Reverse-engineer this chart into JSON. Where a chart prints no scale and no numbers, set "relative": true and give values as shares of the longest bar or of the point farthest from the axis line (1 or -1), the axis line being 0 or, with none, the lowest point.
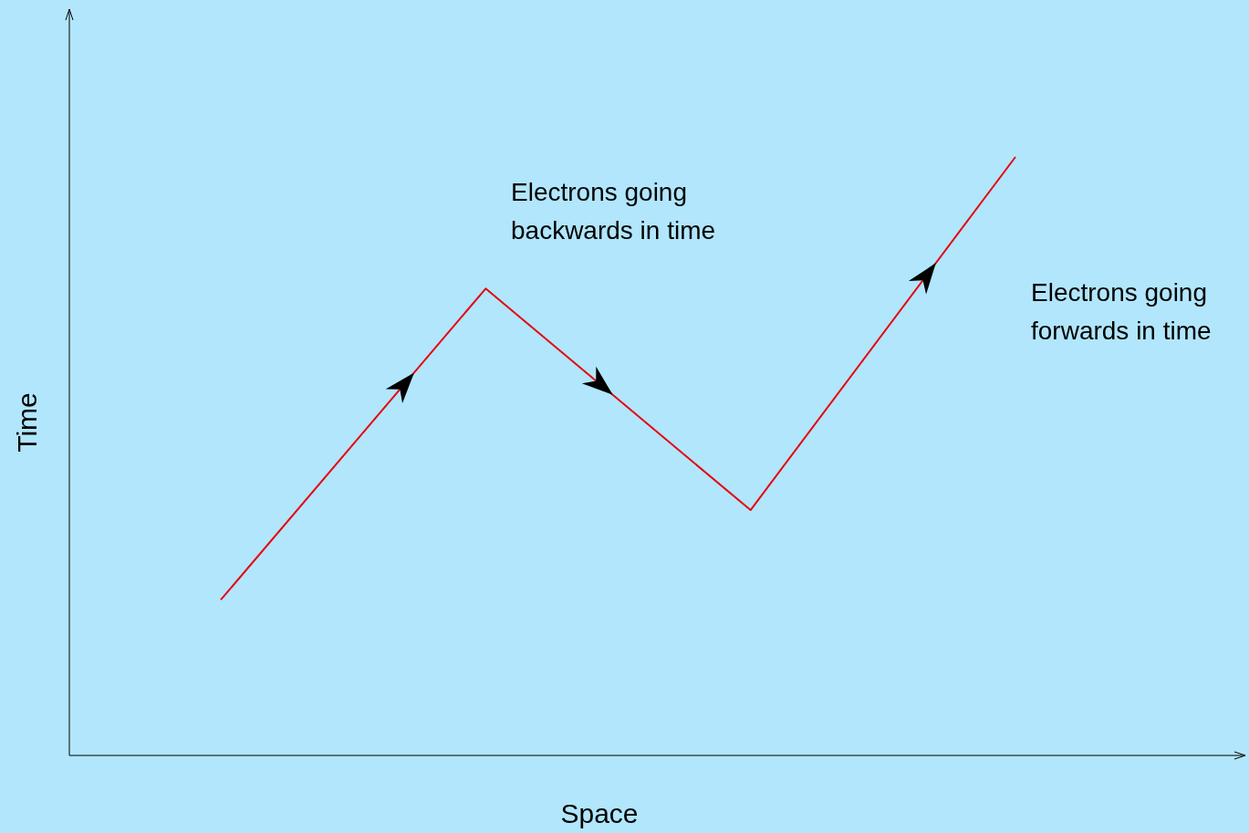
{
  "chart_data": {
    "type": "line",
    "relative": true,
    "xlabel": "Space",
    "ylabel": "Time",
    "categories": [
      null,
      null,
      null,
      null
    ],
    "series": [
      {
        "color": "#e8000b",
        "values": [
          0.26,
          0.78,
          0.41,
          1
        ]
      }
    ],
    "annotations": [
      "Electrons going\nbackwards in time",
      "Electrons going\nforwards in time"
    ]
  }
}
